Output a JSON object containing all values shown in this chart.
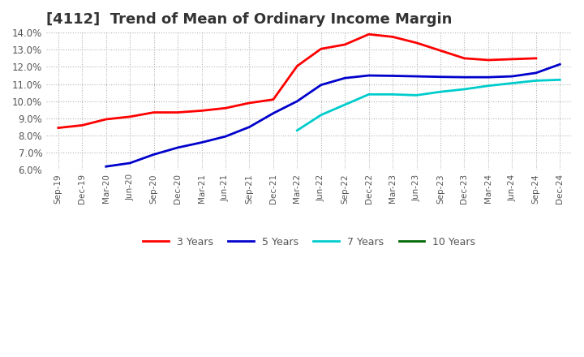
{
  "title": "[4112]  Trend of Mean of Ordinary Income Margin",
  "title_fontsize": 13,
  "ylim": [
    0.06,
    0.14
  ],
  "yticks": [
    0.06,
    0.07,
    0.08,
    0.09,
    0.1,
    0.11,
    0.12,
    0.13,
    0.14
  ],
  "x_labels": [
    "Sep-19",
    "Dec-19",
    "Mar-20",
    "Jun-20",
    "Sep-20",
    "Dec-20",
    "Mar-21",
    "Jun-21",
    "Sep-21",
    "Dec-21",
    "Mar-22",
    "Jun-22",
    "Sep-22",
    "Dec-22",
    "Mar-23",
    "Jun-23",
    "Sep-23",
    "Dec-23",
    "Mar-24",
    "Jun-24",
    "Sep-24",
    "Dec-24"
  ],
  "series": {
    "3 Years": {
      "color": "#ff0000",
      "data_x": [
        0,
        1,
        2,
        3,
        4,
        5,
        6,
        7,
        8,
        9,
        10,
        11,
        12,
        13,
        14,
        15,
        16,
        17,
        18,
        19,
        20
      ],
      "data_y": [
        0.0845,
        0.086,
        0.0895,
        0.091,
        0.0935,
        0.0935,
        0.0945,
        0.096,
        0.099,
        0.101,
        0.1205,
        0.1305,
        0.133,
        0.139,
        0.1375,
        0.134,
        0.1295,
        0.125,
        0.124,
        0.1245,
        0.125
      ]
    },
    "5 Years": {
      "color": "#0000cc",
      "data_x": [
        2,
        3,
        4,
        5,
        6,
        7,
        8,
        9,
        10,
        11,
        12,
        13,
        14,
        15,
        16,
        17,
        18,
        19,
        20,
        21
      ],
      "data_y": [
        0.062,
        0.064,
        0.069,
        0.073,
        0.076,
        0.0795,
        0.085,
        0.093,
        0.1,
        0.1095,
        0.1135,
        0.115,
        0.1148,
        0.1145,
        0.1142,
        0.114,
        0.114,
        0.1145,
        0.1165,
        0.1215
      ]
    },
    "7 Years": {
      "color": "#00cccc",
      "data_x": [
        10,
        11,
        12,
        13,
        14,
        15,
        16,
        17,
        18,
        19,
        20,
        21
      ],
      "data_y": [
        0.083,
        0.092,
        0.098,
        0.104,
        0.104,
        0.1035,
        0.1055,
        0.107,
        0.109,
        0.1105,
        0.112,
        0.1125
      ]
    },
    "10 Years": {
      "color": "#006600",
      "data_x": [],
      "data_y": []
    }
  },
  "legend_labels": [
    "3 Years",
    "5 Years",
    "7 Years",
    "10 Years"
  ],
  "legend_colors": [
    "#ff0000",
    "#0000cc",
    "#00cccc",
    "#006600"
  ],
  "background_color": "#ffffff",
  "grid_color": "#aaaaaa"
}
